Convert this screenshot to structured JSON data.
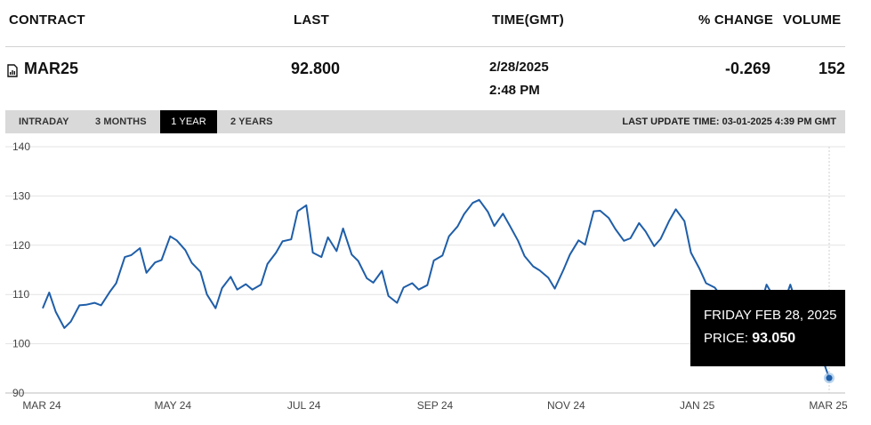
{
  "header": {
    "contract": "CONTRACT",
    "last": "LAST",
    "time": "TIME(GMT)",
    "change": "% CHANGE",
    "volume": "VOLUME"
  },
  "row": {
    "contract": "MAR25",
    "last": "92.800",
    "date": "2/28/2025",
    "time": "2:48 PM",
    "change": "-0.269",
    "volume": "152",
    "icon": "file-icon"
  },
  "tabs": [
    {
      "label": "INTRADAY",
      "active": false
    },
    {
      "label": "3 MONTHS",
      "active": false
    },
    {
      "label": "1 YEAR",
      "active": true
    },
    {
      "label": "2 YEARS",
      "active": false
    }
  ],
  "last_update": "LAST UPDATE TIME: 03-01-2025 4:39 PM GMT",
  "tooltip": {
    "date": "FRIDAY FEB 28, 2025",
    "price_label": "PRICE: ",
    "price_value": "93.050"
  },
  "chart_data": {
    "type": "line",
    "title": "",
    "xlabel": "",
    "ylabel": "",
    "ylim": [
      90,
      140
    ],
    "yticks": [
      "140",
      "130",
      "120",
      "110",
      "100",
      "90"
    ],
    "xticks": [
      "MAR 24",
      "MAY 24",
      "JUL 24",
      "SEP 24",
      "NOV 24",
      "JAN 25",
      "MAR 25"
    ],
    "xlim": [
      "2024-03-01",
      "2025-02-28"
    ],
    "grid": true,
    "line_color": "#1f5ea8",
    "series": [
      {
        "x": [
          "2024-03-01",
          "2024-03-04",
          "2024-03-07",
          "2024-03-11",
          "2024-03-14",
          "2024-03-18",
          "2024-03-21",
          "2024-03-25",
          "2024-03-28",
          "2024-04-01",
          "2024-04-04",
          "2024-04-08",
          "2024-04-11",
          "2024-04-15",
          "2024-04-18",
          "2024-04-22",
          "2024-04-25",
          "2024-04-29",
          "2024-05-02",
          "2024-05-06",
          "2024-05-09",
          "2024-05-13",
          "2024-05-16",
          "2024-05-20",
          "2024-05-23",
          "2024-05-27",
          "2024-05-30",
          "2024-06-03",
          "2024-06-06",
          "2024-06-10",
          "2024-06-13",
          "2024-06-17",
          "2024-06-20",
          "2024-06-24",
          "2024-06-27",
          "2024-07-01",
          "2024-07-04",
          "2024-07-08",
          "2024-07-11",
          "2024-07-15",
          "2024-07-18",
          "2024-07-22",
          "2024-07-25",
          "2024-07-29",
          "2024-08-01",
          "2024-08-05",
          "2024-08-08",
          "2024-08-12",
          "2024-08-15",
          "2024-08-19",
          "2024-08-22",
          "2024-08-26",
          "2024-08-29",
          "2024-09-02",
          "2024-09-05",
          "2024-09-09",
          "2024-09-12",
          "2024-09-16",
          "2024-09-19",
          "2024-09-23",
          "2024-09-26",
          "2024-09-30",
          "2024-10-03",
          "2024-10-07",
          "2024-10-10",
          "2024-10-14",
          "2024-10-17",
          "2024-10-21",
          "2024-10-24",
          "2024-10-28",
          "2024-10-31",
          "2024-11-04",
          "2024-11-07",
          "2024-11-11",
          "2024-11-14",
          "2024-11-18",
          "2024-11-21",
          "2024-11-25",
          "2024-11-28",
          "2024-12-02",
          "2024-12-05",
          "2024-12-09",
          "2024-12-12",
          "2024-12-16",
          "2024-12-19",
          "2024-12-23",
          "2024-12-26",
          "2024-12-30",
          "2025-01-02",
          "2025-01-06",
          "2025-01-09",
          "2025-01-13",
          "2025-01-16",
          "2025-01-20",
          "2025-01-23",
          "2025-01-27",
          "2025-01-30",
          "2025-02-03",
          "2025-02-06",
          "2025-02-10",
          "2025-02-13",
          "2025-02-17",
          "2025-02-20",
          "2025-02-24",
          "2025-02-28"
        ],
        "values": [
          107.2,
          110.4,
          106.5,
          103.2,
          104.5,
          107.8,
          107.9,
          108.3,
          107.8,
          110.5,
          112.3,
          117.6,
          118.0,
          119.4,
          114.4,
          116.5,
          117.0,
          121.8,
          121.0,
          119.0,
          116.4,
          114.6,
          110.0,
          107.2,
          111.3,
          113.6,
          111.0,
          112.1,
          111.0,
          112.0,
          116.2,
          118.5,
          120.8,
          121.2,
          126.9,
          128.1,
          118.5,
          117.6,
          121.6,
          118.8,
          123.4,
          118.1,
          116.8,
          113.3,
          112.4,
          114.8,
          109.7,
          108.3,
          111.4,
          112.3,
          111.0,
          111.9,
          116.9,
          117.9,
          121.8,
          123.8,
          126.3,
          128.6,
          129.2,
          126.8,
          123.9,
          126.4,
          124.1,
          120.9,
          117.8,
          115.7,
          114.9,
          113.4,
          111.2,
          115.0,
          118.1,
          121.0,
          120.1,
          126.9,
          127.0,
          125.5,
          123.3,
          120.9,
          121.4,
          124.5,
          122.8,
          119.8,
          121.3,
          125.0,
          127.3,
          124.9,
          118.5,
          115.2,
          112.3,
          111.4,
          109.7,
          107.8,
          106.4,
          107.4,
          108.0,
          107.5,
          112.0,
          109.0,
          107.0,
          112.0,
          108.0,
          104.0,
          101.0,
          98.0,
          93.05
        ]
      }
    ]
  }
}
